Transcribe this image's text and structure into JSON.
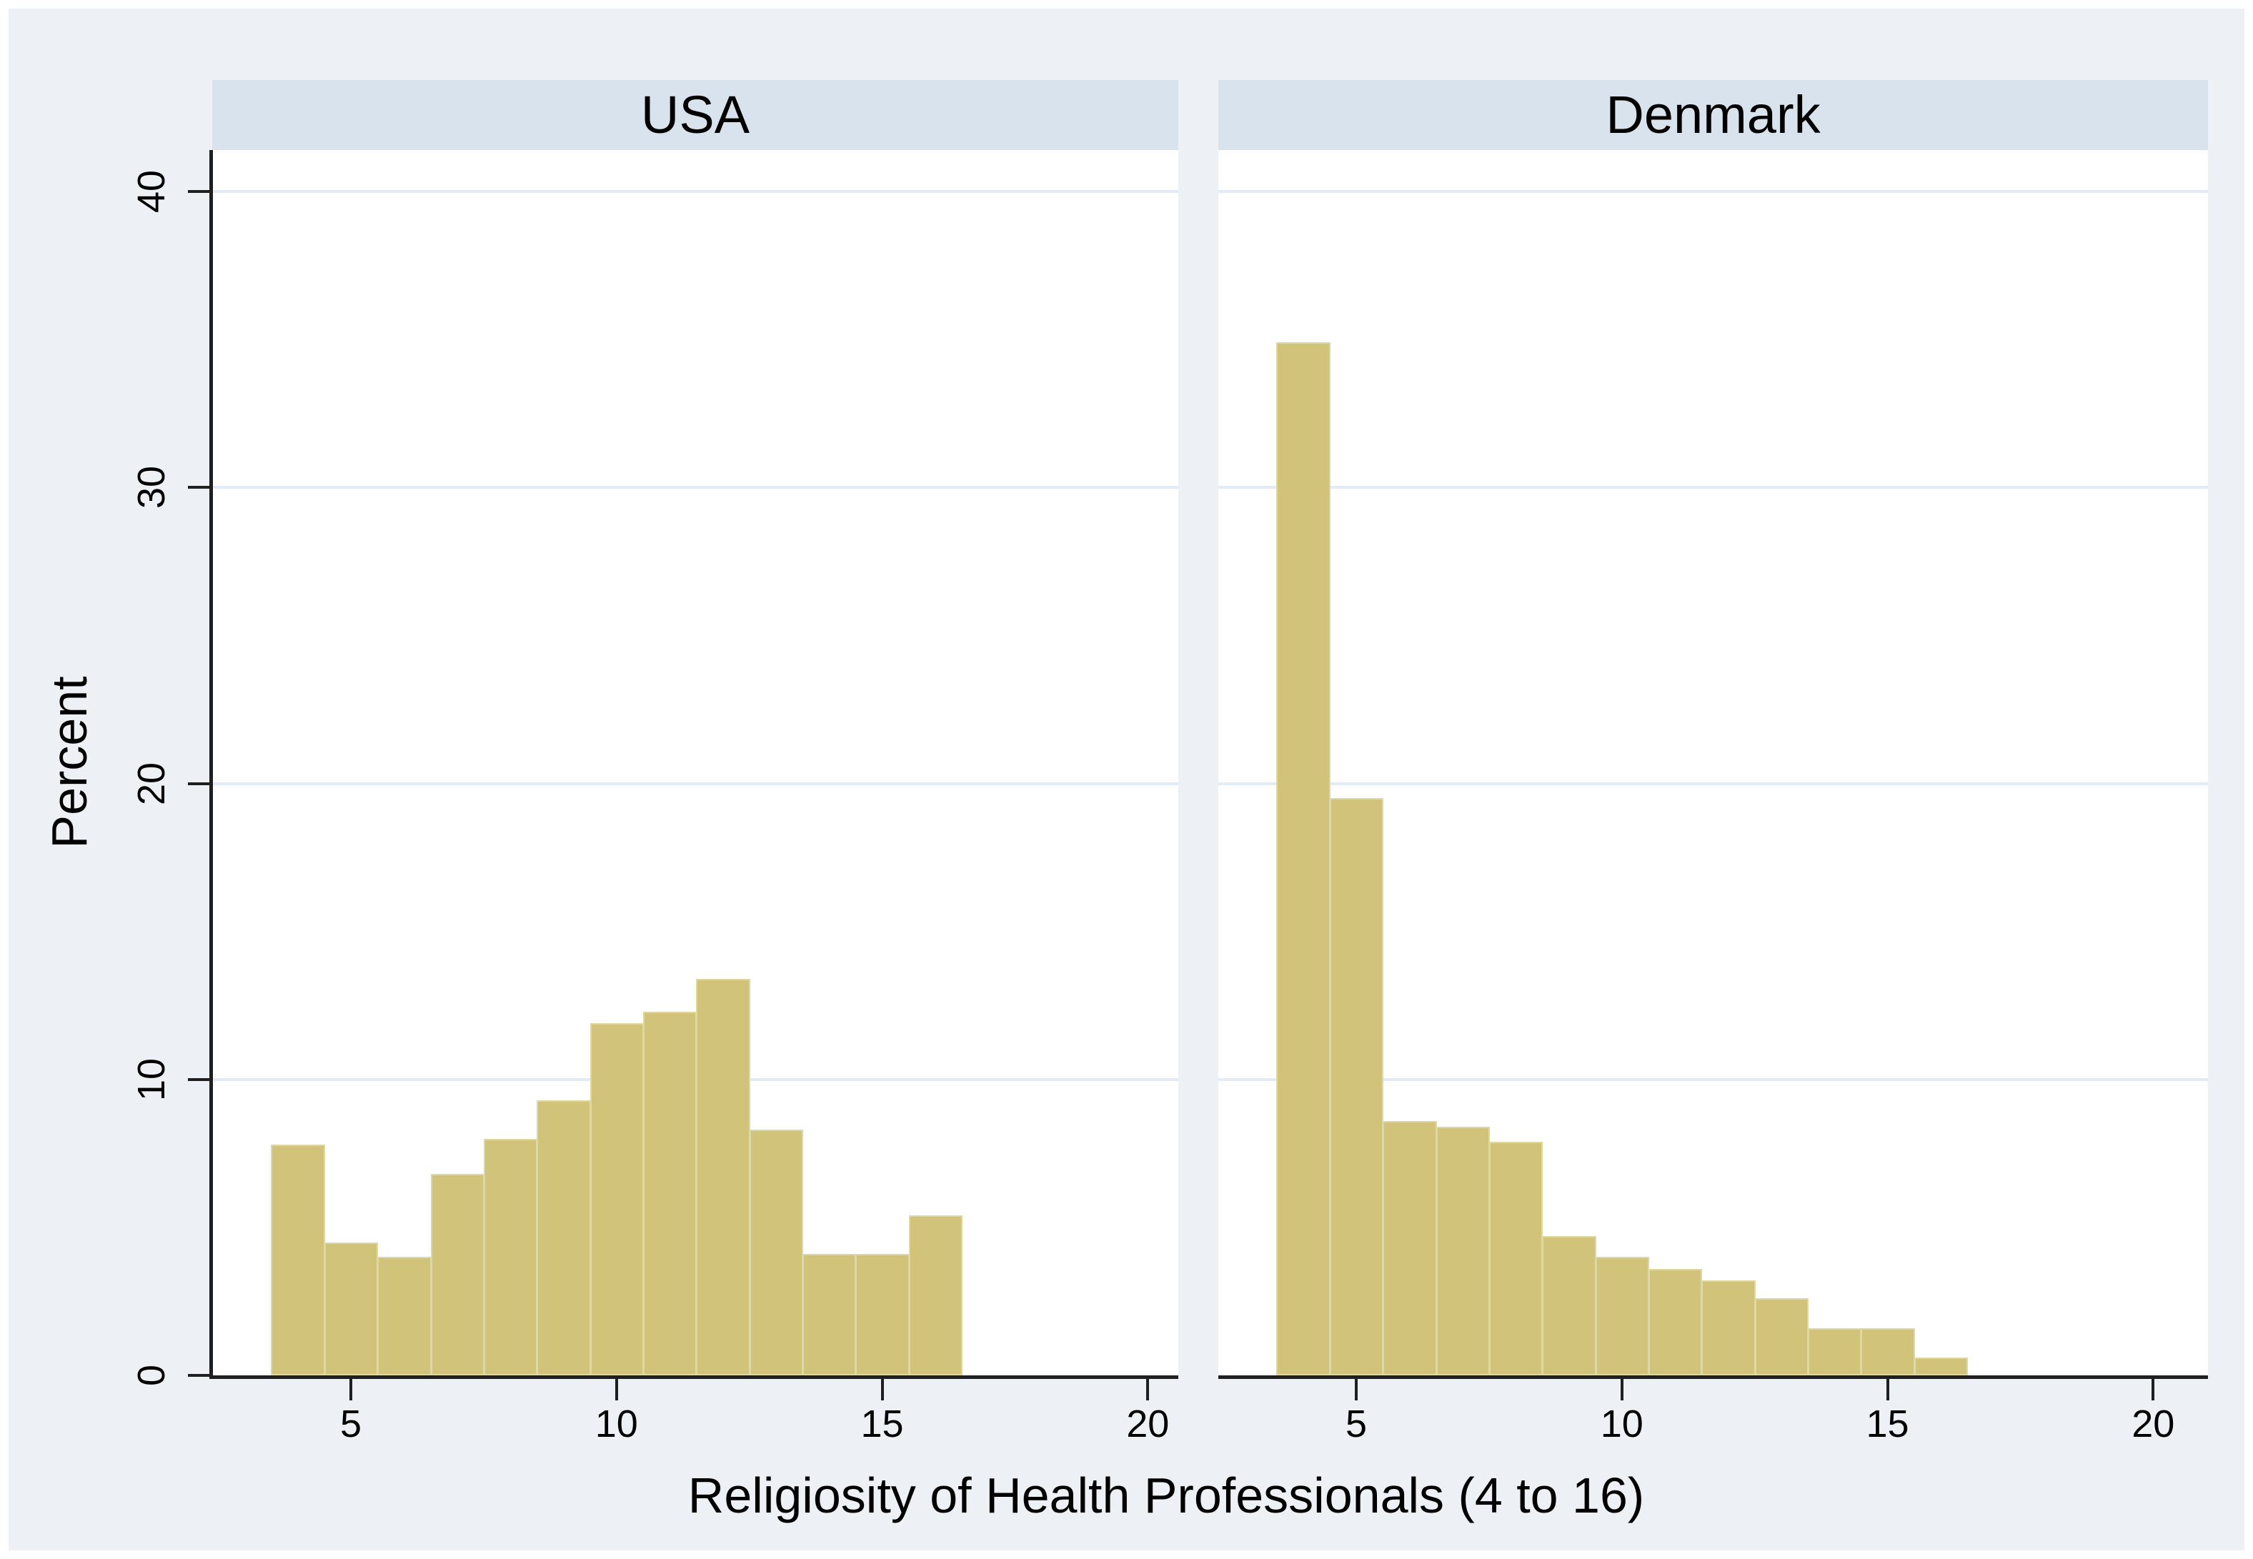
{
  "panels": [
    {
      "label": "USA"
    },
    {
      "label": "Denmark"
    }
  ],
  "axes": {
    "ylabel": "Percent",
    "xlabel": "Religiosity of Health Professionals (4 to 16)",
    "y_ticks": [
      0,
      10,
      20,
      30,
      40
    ],
    "x_ticks": [
      5,
      10,
      15,
      20
    ]
  },
  "colors": {
    "figure_bg": "#edf0f5",
    "strip_bg": "#d9e3ee",
    "plot_bg": "#ffffff",
    "gridline": "#e3ebf6",
    "axis": "#1f1f1f",
    "bar_fill": "#d2c37b",
    "bar_edge": "#ddd8a4",
    "text": "#000000"
  },
  "chart_data": {
    "type": "bar",
    "subtype": "histogram, two panels by country",
    "title": "",
    "xlabel": "Religiosity of Health Professionals (4 to 16)",
    "ylabel": "Percent",
    "bin_width": 1,
    "bin_centers": [
      4,
      5,
      6,
      7,
      8,
      9,
      10,
      11,
      12,
      13,
      14,
      15,
      16
    ],
    "series": [
      {
        "name": "USA",
        "values": [
          7.8,
          4.5,
          4.0,
          6.8,
          8.0,
          9.3,
          11.9,
          12.3,
          13.4,
          8.3,
          4.1,
          4.1,
          5.4
        ]
      },
      {
        "name": "Denmark",
        "values": [
          34.9,
          19.5,
          8.6,
          8.4,
          7.9,
          4.7,
          4.0,
          3.6,
          3.2,
          2.6,
          1.6,
          1.6,
          0.6
        ]
      }
    ],
    "xlim": [
      2.4,
      20.8
    ],
    "ylim": [
      0,
      41.4
    ],
    "x_ticks": [
      5,
      10,
      15,
      20
    ],
    "y_ticks": [
      0,
      10,
      20,
      30,
      40
    ],
    "grid": "horizontal gridlines at 10, 20, 30, 40",
    "legend": "none"
  }
}
